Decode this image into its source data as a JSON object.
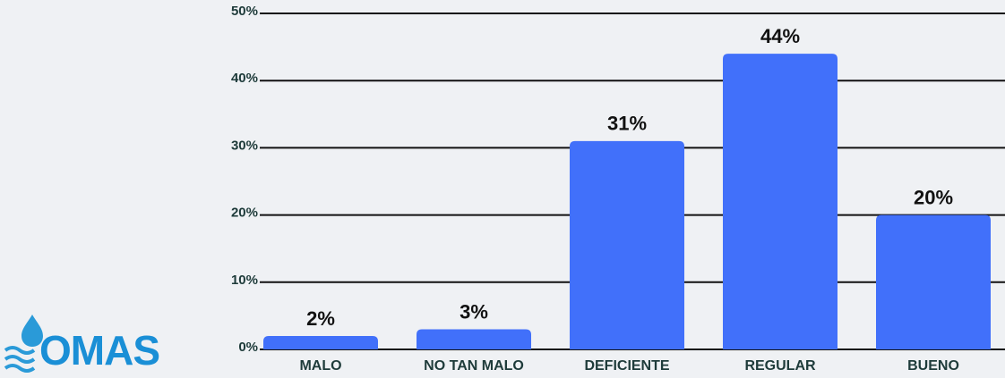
{
  "logo": "OMAS",
  "chart_data": {
    "type": "bar",
    "categories": [
      "MALO",
      "NO TAN MALO",
      "DEFICIENTE",
      "REGULAR",
      "BUENO"
    ],
    "values": [
      2,
      3,
      31,
      44,
      20
    ],
    "value_labels": [
      "2%",
      "3%",
      "31%",
      "44%",
      "20%"
    ],
    "color": "#4170fa",
    "ylim": [
      0,
      50
    ],
    "yticks": [
      {
        "value": 0,
        "label": "0%"
      },
      {
        "value": 10,
        "label": "10%"
      },
      {
        "value": 20,
        "label": "20%"
      },
      {
        "value": 30,
        "label": "30%"
      },
      {
        "value": 40,
        "label": "40%"
      },
      {
        "value": 50,
        "label": "50%"
      }
    ],
    "grid": true
  }
}
